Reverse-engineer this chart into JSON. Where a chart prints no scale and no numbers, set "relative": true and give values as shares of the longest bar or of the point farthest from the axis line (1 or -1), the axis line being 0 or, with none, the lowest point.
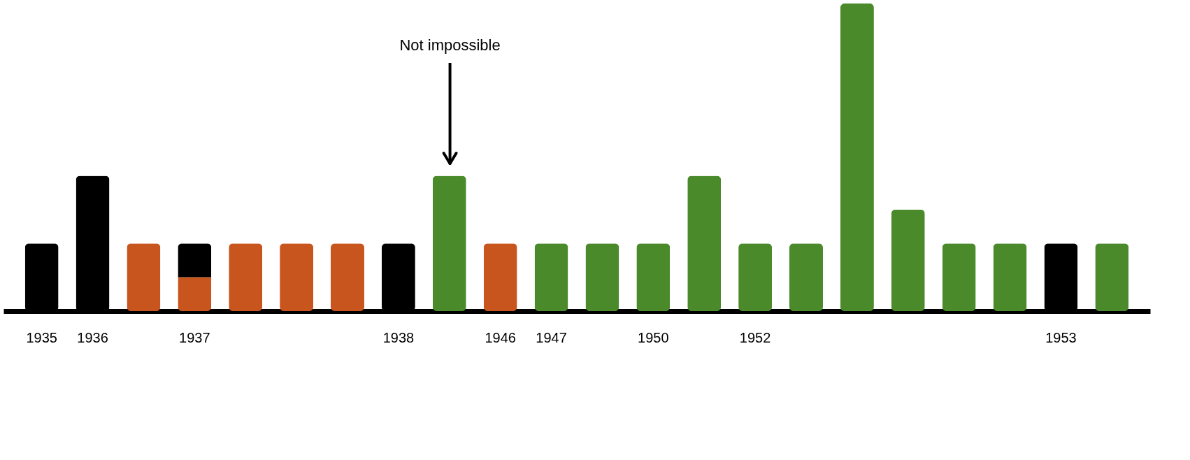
{
  "chart_data": {
    "type": "bar",
    "stacked": true,
    "relative": true,
    "categories": [
      "1935",
      "1936",
      null,
      "1937",
      null,
      null,
      null,
      "1938",
      null,
      "1946",
      "1947",
      null,
      "1950",
      null,
      "1952",
      null,
      null,
      null,
      null,
      null,
      "1953",
      null
    ],
    "series": [
      {
        "color": "#c8541e",
        "values": [
          null,
          null,
          0.22,
          0.11,
          0.22,
          0.22,
          0.22,
          null,
          null,
          0.22,
          null,
          null,
          null,
          null,
          null,
          null,
          null,
          null,
          null,
          null,
          null,
          null
        ]
      },
      {
        "color": "#000000",
        "values": [
          0.22,
          0.44,
          null,
          0.11,
          null,
          null,
          null,
          0.22,
          null,
          null,
          null,
          null,
          null,
          null,
          null,
          null,
          null,
          null,
          null,
          null,
          0.22,
          null
        ]
      },
      {
        "color": "#4a8a2a",
        "values": [
          null,
          null,
          null,
          null,
          null,
          null,
          null,
          null,
          0.44,
          null,
          0.22,
          0.22,
          0.22,
          0.44,
          0.22,
          0.22,
          1,
          0.33,
          0.22,
          0.22,
          null,
          0.22
        ]
      }
    ],
    "annotations": [
      "Not impossible"
    ],
    "legend": false,
    "grid": false
  }
}
